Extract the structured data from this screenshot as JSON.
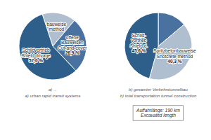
{
  "chart_data": [
    {
      "type": "pie",
      "categories": [
        "bauweise\nmethod",
        "offene\nBauweisen\nCut-and-cover",
        "Schildvortrieb\nShield drivage"
      ],
      "values": [
        16.1,
        26.9,
        57.0
      ],
      "value_labels": [
        null,
        "26,9 %",
        "57,0 %"
      ],
      "colors": [
        "#b0bfd0",
        "#4a72a0",
        "#2e5f8a"
      ],
      "data_labels": true,
      "subtitle": [
        "a) ...",
        "a) urban rapid transit systems"
      ]
    },
    {
      "type": "pie",
      "categories": [
        null,
        "Spritzbetonbauweise\nShotcrete method",
        "Schild-\nvortrieb\nShield d."
      ],
      "values": [
        13.8,
        40.3,
        45.6
      ],
      "value_labels": [
        null,
        "40,3 %",
        "45,6 %"
      ],
      "colors": [
        "#4a72a0",
        "#b0bfd0",
        "#2e5f8a"
      ],
      "data_labels": true,
      "subtitle": [
        "b) gesamter Verkehrstunnelbau",
        "b) total transportation tunnel construction"
      ],
      "annotations": [
        "Auffahrlänge: 190 km\nExcavated length"
      ]
    }
  ]
}
